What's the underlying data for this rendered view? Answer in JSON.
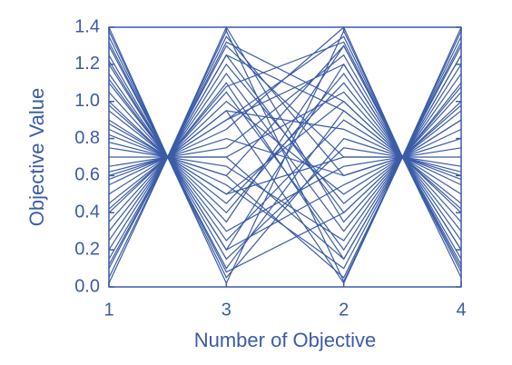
{
  "chart_data": {
    "type": "parallel",
    "color": "#3b5ca6",
    "xlabel": "Number of Objective",
    "ylabel": "Objective Value",
    "x": [
      1,
      1.5,
      2,
      3,
      3.5,
      4
    ],
    "xlim": [
      1,
      4
    ],
    "xticks": [
      1,
      {
        "value": 2,
        "label": "3"
      },
      {
        "value": 3,
        "label": "2"
      },
      4
    ],
    "ylim": [
      0,
      1.4
    ],
    "yticks": [
      {
        "value": 0,
        "label": "0.0"
      },
      0.2,
      0.4,
      0.6,
      0.8,
      {
        "value": 1,
        "label": "1.0"
      },
      1.2,
      1.4
    ],
    "series": [
      {
        "values": [
          1.4,
          0.7,
          0.02,
          1.38,
          0.7,
          1.35
        ]
      },
      {
        "values": [
          0.05,
          0.7,
          1.38,
          0.03,
          0.7,
          0.1
        ]
      },
      {
        "values": [
          1.3,
          0.7,
          0.2,
          1.2,
          0.7,
          1.25
        ]
      },
      {
        "values": [
          0.15,
          0.7,
          1.25,
          0.4,
          0.7,
          0.2
        ]
      },
      {
        "values": [
          1.2,
          0.7,
          0.5,
          1.0,
          0.7,
          0.05
        ]
      },
      {
        "values": [
          0.3,
          0.7,
          1.1,
          0.15,
          0.7,
          1.4
        ]
      },
      {
        "values": [
          1.1,
          0.7,
          0.8,
          0.6,
          0.7,
          0.3
        ]
      },
      {
        "values": [
          0.45,
          0.7,
          0.95,
          0.85,
          0.7,
          1.1
        ]
      },
      {
        "values": [
          1.0,
          0.7,
          0.35,
          1.3,
          0.7,
          0.45
        ]
      },
      {
        "values": [
          0.6,
          0.7,
          0.65,
          0.25,
          0.7,
          0.9
        ]
      },
      {
        "values": [
          0.9,
          0.7,
          1.3,
          0.7,
          0.7,
          0.6
        ]
      },
      {
        "values": [
          0.75,
          0.7,
          0.1,
          0.95,
          0.7,
          0.75
        ]
      },
      {
        "values": [
          0.82,
          0.7,
          1.0,
          0.5,
          0.7,
          1.2
        ]
      },
      {
        "values": [
          0.55,
          0.7,
          0.45,
          1.1,
          0.7,
          0.15
        ]
      },
      {
        "values": [
          1.35,
          0.7,
          0.6,
          0.05,
          0.7,
          1.0
        ]
      },
      {
        "values": [
          0.1,
          0.7,
          0.9,
          1.35,
          0.7,
          0.55
        ]
      },
      {
        "values": [
          1.25,
          0.7,
          1.15,
          0.3,
          0.7,
          0.85
        ]
      },
      {
        "values": [
          0.2,
          0.7,
          0.25,
          0.9,
          0.7,
          1.3
        ]
      },
      {
        "values": [
          0.95,
          0.7,
          0.75,
          1.25,
          0.7,
          0.35
        ]
      },
      {
        "values": [
          0.4,
          0.7,
          1.35,
          0.6,
          0.7,
          0.95
        ]
      },
      {
        "values": [
          1.15,
          0.7,
          0.05,
          0.8,
          0.7,
          0.65
        ]
      },
      {
        "values": [
          0.65,
          0.7,
          0.55,
          0.1,
          0.7,
          1.15
        ]
      },
      {
        "values": [
          0.85,
          0.7,
          0.85,
          1.4,
          0.7,
          0.25
        ]
      },
      {
        "values": [
          0.5,
          0.7,
          1.2,
          0.45,
          0.7,
          0.5
        ]
      },
      {
        "values": [
          1.05,
          0.7,
          0.3,
          0.65,
          0.7,
          1.05
        ]
      },
      {
        "values": [
          0.25,
          0.7,
          0.7,
          1.05,
          0.7,
          0.8
        ]
      },
      {
        "values": [
          1.38,
          0.7,
          1.05,
          0.2,
          0.7,
          0.4
        ]
      },
      {
        "values": [
          0.02,
          0.7,
          0.4,
          1.15,
          0.7,
          1.38
        ]
      },
      {
        "values": [
          0.7,
          0.7,
          1.4,
          0.35,
          0.7,
          0.7
        ]
      },
      {
        "values": [
          1.22,
          0.7,
          0.15,
          0.75,
          0.7,
          0.12
        ]
      },
      {
        "values": [
          0.35,
          0.7,
          0.6,
          1.3,
          0.7,
          1.25
        ]
      },
      {
        "values": [
          0.98,
          0.7,
          0.95,
          0.02,
          0.7,
          0.58
        ]
      },
      {
        "values": [
          0.62,
          0.7,
          0.2,
          0.55,
          0.7,
          0.98
        ]
      },
      {
        "values": [
          1.12,
          0.7,
          1.25,
          0.95,
          0.7,
          0.2
        ]
      },
      {
        "values": [
          0.12,
          0.7,
          0.5,
          0.7,
          0.7,
          1.32
        ]
      },
      {
        "values": [
          0.78,
          0.7,
          0.9,
          1.2,
          0.7,
          0.42
        ]
      },
      {
        "values": [
          1.32,
          0.7,
          0.08,
          0.4,
          0.7,
          1.08
        ]
      },
      {
        "values": [
          0.42,
          0.7,
          1.32,
          1.0,
          0.7,
          0.08
        ]
      },
      {
        "values": [
          0.88,
          0.7,
          0.7,
          0.15,
          0.7,
          0.9
        ]
      },
      {
        "values": [
          0.58,
          0.7,
          1.08,
          1.32,
          0.7,
          0.62
        ]
      }
    ]
  }
}
